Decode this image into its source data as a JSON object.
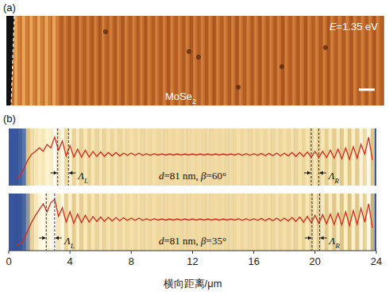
{
  "chart_data": [
    {
      "type": "image",
      "panel": "(a)",
      "annotation": "E=1.35 eV",
      "label_parts": [
        "MoSe",
        "2"
      ]
    },
    {
      "type": "line",
      "panel": "(b)",
      "xlabel": "横向距离/μm",
      "xlim": [
        0,
        24
      ],
      "xticks": [
        0,
        4,
        8,
        12,
        16,
        20,
        24
      ],
      "ylim": [
        0,
        1
      ],
      "tick_labels": "x",
      "x": [
        0.5,
        0.75,
        1,
        1.25,
        1.5,
        1.75,
        2,
        2.25,
        2.5,
        2.75,
        3,
        3.25,
        3.5,
        3.75,
        4,
        4.25,
        4.5,
        4.75,
        5,
        5.25,
        5.5,
        5.75,
        6,
        6.25,
        6.5,
        6.75,
        7,
        7.25,
        7.5,
        7.75,
        8,
        8.25,
        8.5,
        8.75,
        9,
        9.25,
        9.5,
        9.75,
        10,
        10.25,
        10.5,
        10.75,
        11,
        11.25,
        11.5,
        11.75,
        12,
        12.25,
        12.5,
        12.75,
        13,
        13.25,
        13.5,
        13.75,
        14,
        14.25,
        14.5,
        14.75,
        15,
        15.25,
        15.5,
        15.75,
        16,
        16.25,
        16.5,
        16.75,
        17,
        17.25,
        17.5,
        17.75,
        18,
        18.25,
        18.5,
        18.75,
        19,
        19.25,
        19.5,
        19.75,
        20,
        20.25,
        20.5,
        20.75,
        21,
        21.25,
        21.5,
        21.75,
        22,
        22.25,
        22.5,
        22.75,
        23,
        23.25,
        23.5,
        23.75
      ],
      "series": [
        {
          "name": "d=81 nm, β=60°",
          "color": "#d42a1c",
          "values": [
            0.12,
            0.18,
            0.3,
            0.45,
            0.55,
            0.6,
            0.66,
            0.6,
            0.72,
            0.66,
            0.85,
            0.62,
            0.78,
            0.52,
            0.7,
            0.5,
            0.64,
            0.5,
            0.62,
            0.5,
            0.6,
            0.51,
            0.59,
            0.51,
            0.58,
            0.52,
            0.58,
            0.52,
            0.57,
            0.53,
            0.57,
            0.53,
            0.57,
            0.53,
            0.56,
            0.53,
            0.56,
            0.535,
            0.555,
            0.535,
            0.555,
            0.535,
            0.555,
            0.535,
            0.555,
            0.535,
            0.555,
            0.535,
            0.555,
            0.535,
            0.555,
            0.535,
            0.555,
            0.535,
            0.555,
            0.535,
            0.555,
            0.535,
            0.56,
            0.53,
            0.56,
            0.53,
            0.56,
            0.53,
            0.565,
            0.525,
            0.565,
            0.525,
            0.57,
            0.52,
            0.57,
            0.52,
            0.58,
            0.51,
            0.58,
            0.51,
            0.59,
            0.5,
            0.6,
            0.5,
            0.6,
            0.49,
            0.62,
            0.48,
            0.64,
            0.47,
            0.66,
            0.46,
            0.68,
            0.48,
            0.72,
            0.55,
            0.85,
            0.45
          ],
          "periods": [
            {
              "label": [
                "Λ",
                "L"
              ],
              "x": [
                3.2,
                3.9
              ]
            },
            {
              "label": [
                "Λ",
                "R"
              ],
              "x": [
                19.75,
                20.25
              ]
            }
          ]
        },
        {
          "name": "d=81 nm, β=35°",
          "color": "#d42a1c",
          "values": [
            0.1,
            0.12,
            0.2,
            0.35,
            0.5,
            0.62,
            0.72,
            0.82,
            0.68,
            0.84,
            0.9,
            0.6,
            0.75,
            0.5,
            0.68,
            0.48,
            0.64,
            0.49,
            0.62,
            0.5,
            0.6,
            0.51,
            0.59,
            0.515,
            0.585,
            0.52,
            0.58,
            0.525,
            0.575,
            0.53,
            0.57,
            0.53,
            0.57,
            0.53,
            0.56,
            0.53,
            0.56,
            0.535,
            0.555,
            0.535,
            0.555,
            0.535,
            0.555,
            0.535,
            0.555,
            0.535,
            0.555,
            0.535,
            0.555,
            0.535,
            0.555,
            0.535,
            0.555,
            0.535,
            0.555,
            0.535,
            0.555,
            0.535,
            0.56,
            0.53,
            0.56,
            0.53,
            0.56,
            0.53,
            0.565,
            0.525,
            0.565,
            0.525,
            0.57,
            0.52,
            0.57,
            0.52,
            0.58,
            0.51,
            0.59,
            0.5,
            0.6,
            0.49,
            0.62,
            0.48,
            0.63,
            0.47,
            0.64,
            0.46,
            0.66,
            0.45,
            0.68,
            0.44,
            0.7,
            0.46,
            0.74,
            0.5,
            0.82,
            0.4
          ],
          "periods": [
            {
              "label": [
                "Λ",
                "L"
              ],
              "x": [
                2.45,
                3.0
              ]
            },
            {
              "label": [
                "Λ",
                "R"
              ],
              "x": [
                19.8,
                20.3
              ]
            }
          ]
        }
      ]
    }
  ]
}
